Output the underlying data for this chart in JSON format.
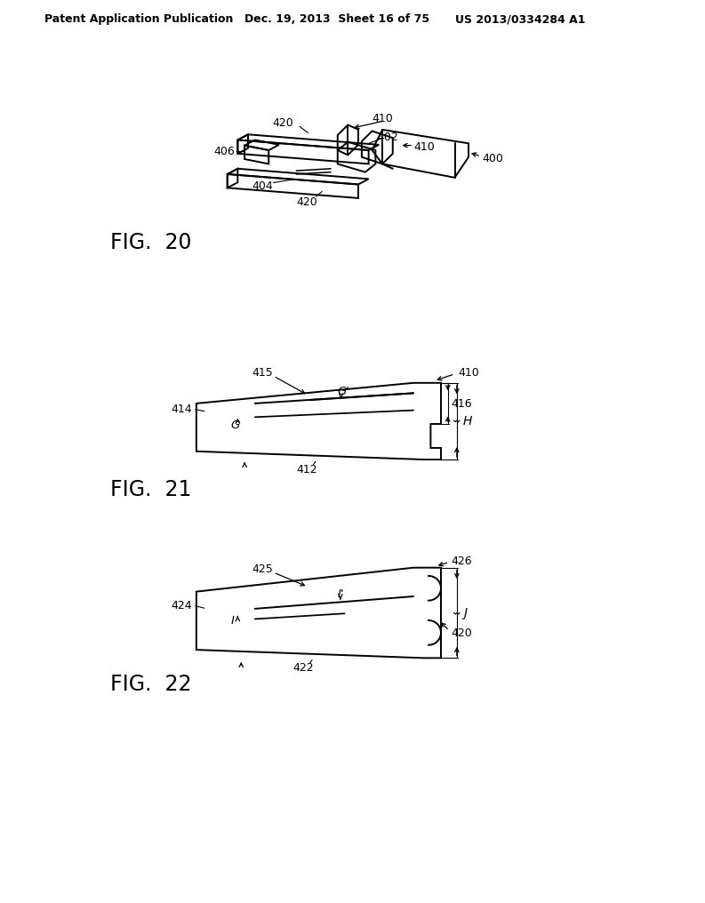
{
  "bg_color": "#ffffff",
  "text_color": "#000000",
  "header_left": "Patent Application Publication",
  "header_mid": "Dec. 19, 2013  Sheet 16 of 75",
  "header_right": "US 2013/0334284 A1",
  "fig20_label": "FIG.  20",
  "fig21_label": "FIG.  21",
  "fig22_label": "FIG.  22",
  "line_color": "#000000",
  "line_width": 1.4
}
